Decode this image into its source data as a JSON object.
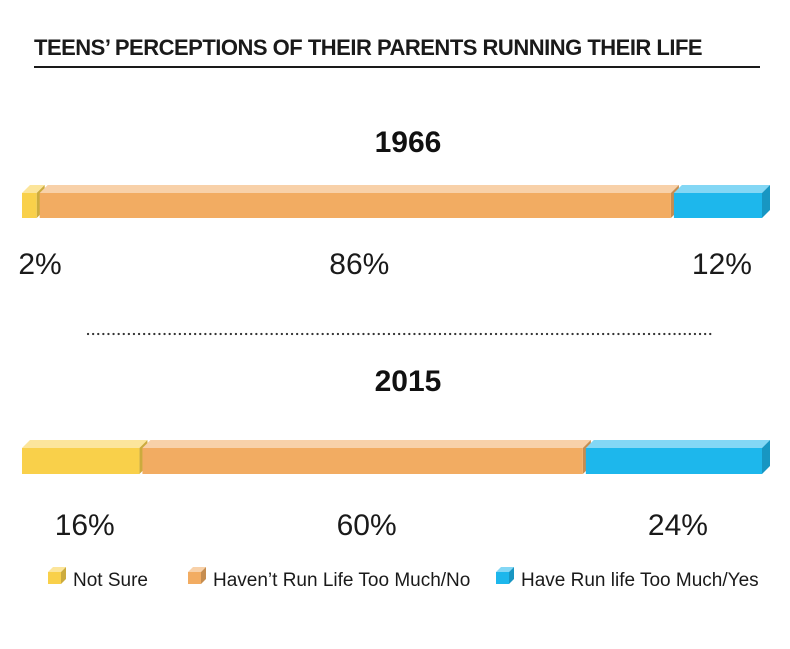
{
  "chart_data": {
    "type": "bar",
    "title": "TEENS’ PERCEPTIONS OF THEIR PARENTS RUNNING THEIR LIFE",
    "categories": [
      "1966",
      "2015"
    ],
    "series": [
      {
        "name": "Not Sure",
        "values": [
          2,
          16
        ],
        "labels": [
          "2%",
          "16%"
        ],
        "color": "#F9D04A"
      },
      {
        "name": "Haven’t Run Life Too Much/No",
        "values": [
          86,
          60
        ],
        "labels": [
          "86%",
          "60%"
        ],
        "color": "#F2AC62"
      },
      {
        "name": "Have Run life Too Much/Yes",
        "values": [
          12,
          24
        ],
        "labels": [
          "12%",
          "24%"
        ],
        "color": "#1DB7EC"
      }
    ],
    "stacked": true,
    "unit": "%",
    "legend_position": "bottom"
  }
}
